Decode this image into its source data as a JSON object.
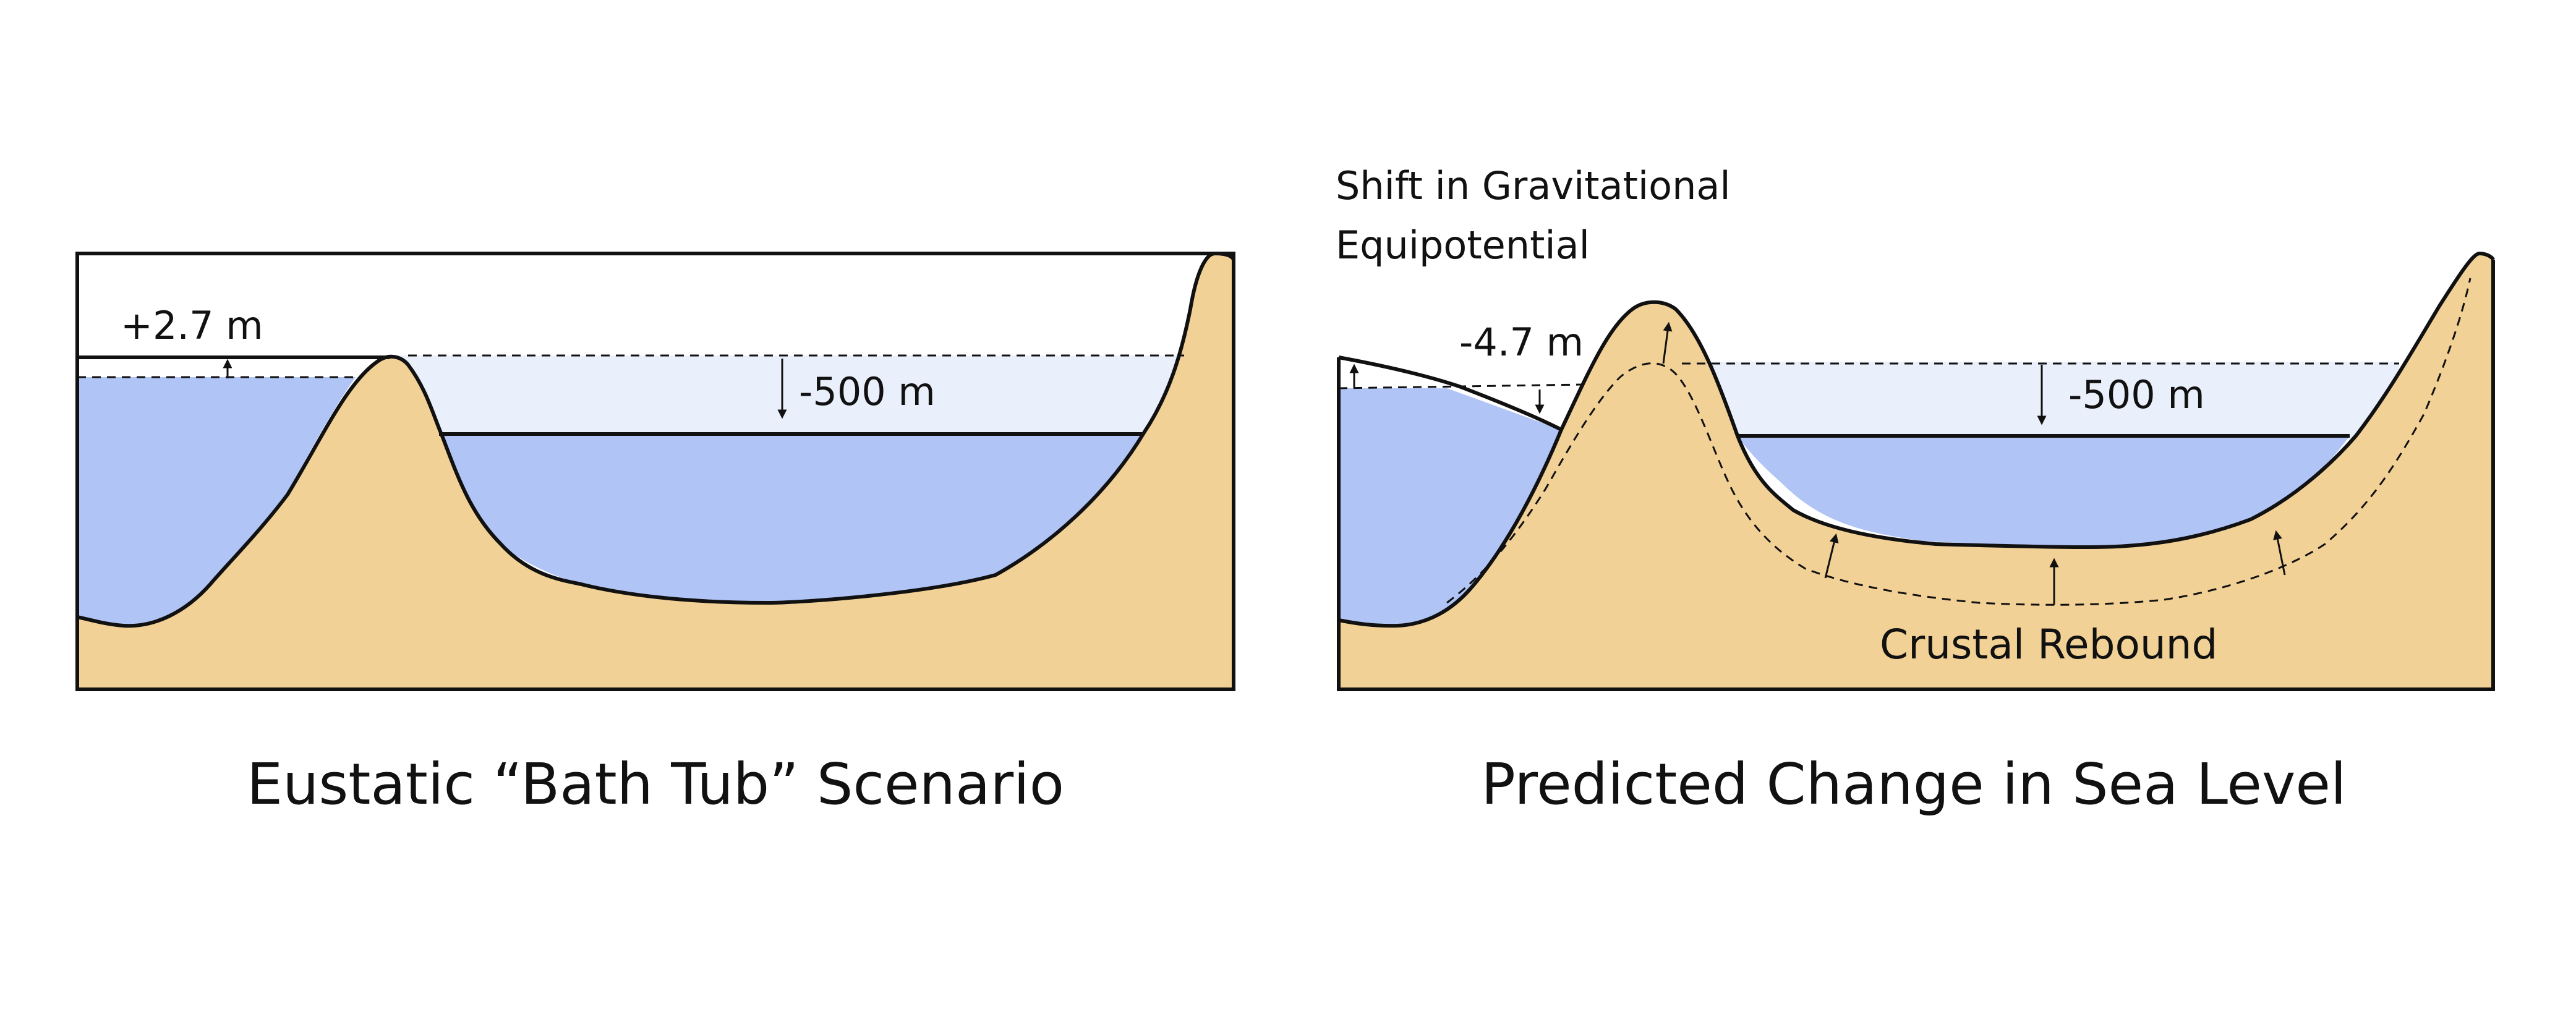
{
  "colors": {
    "water": "#b0c4f6",
    "lost_water": "#e9effb",
    "land": "#f2d196",
    "outline": "#111111"
  },
  "left_panel": {
    "title": "Eustatic “Bath Tub” Scenario",
    "ocean_change_label": "+2.7 m",
    "lake_change_label": "-500 m"
  },
  "right_panel": {
    "title": "Predicted Change in Sea Level",
    "gravity_label_line1": "Shift in Gravitational",
    "gravity_label_line2": "Equipotential",
    "ocean_change_label": "-4.7 m",
    "lake_change_label": "-500 m",
    "rebound_label": "Crustal Rebound"
  }
}
